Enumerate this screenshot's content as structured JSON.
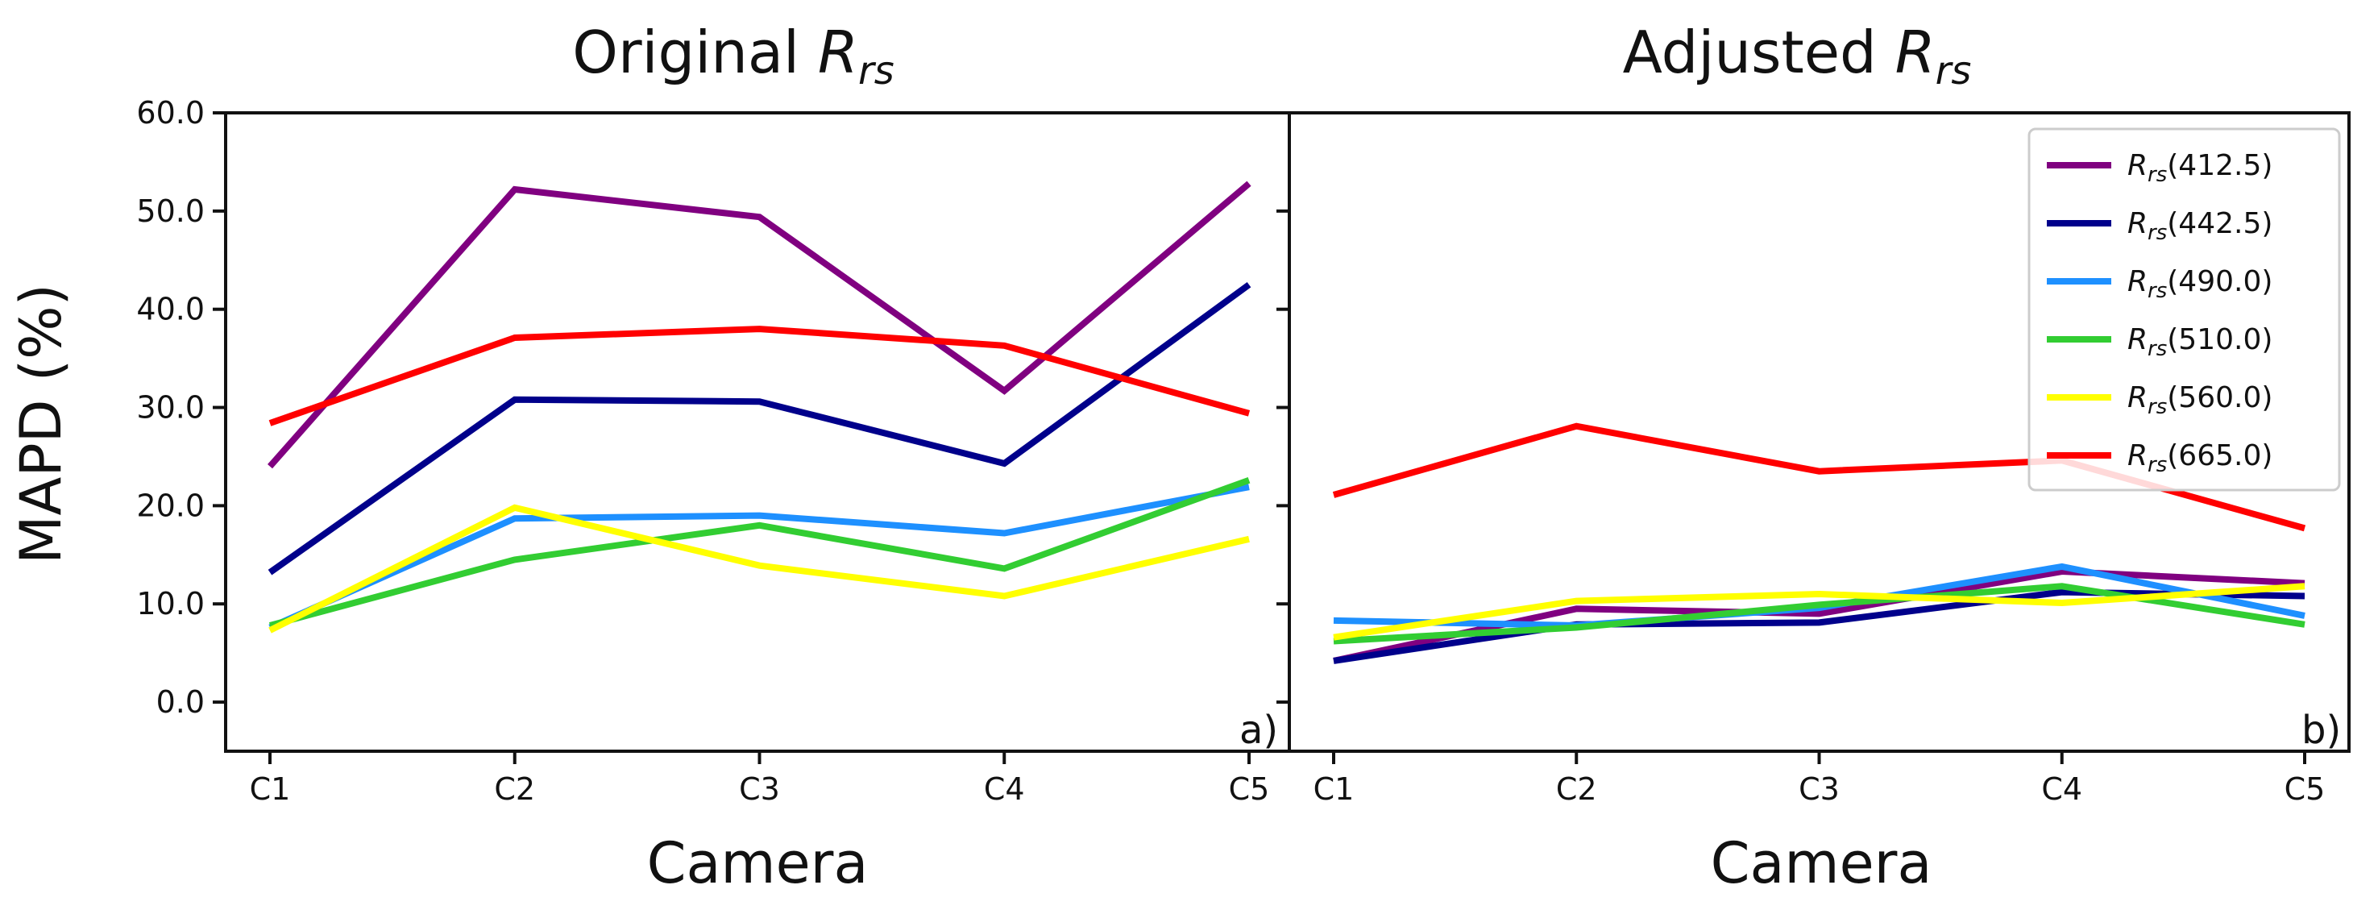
{
  "figure": {
    "ylabel": "MAPD (%)",
    "legend_location": "upper right of panel b"
  },
  "chart_data": [
    {
      "type": "line",
      "panel": "a)",
      "title": "Original",
      "title_symbol": "R",
      "title_subscript": "rs",
      "xlabel": "Camera",
      "ylabel": "MAPD (%)",
      "categories": [
        "C1",
        "C2",
        "C3",
        "C4",
        "C5"
      ],
      "ylim": [
        -5,
        60
      ],
      "yticks": [
        "0.0",
        "10.0",
        "20.0",
        "30.0",
        "40.0",
        "50.0",
        "60.0"
      ],
      "series": [
        {
          "name": "Rrs(412.5)",
          "symbol": "R",
          "subscript": "rs",
          "wavelength": "(412.5)",
          "color": "#800080",
          "values": [
            24.0,
            52.2,
            49.4,
            31.7,
            52.8
          ]
        },
        {
          "name": "Rrs(442.5)",
          "symbol": "R",
          "subscript": "rs",
          "wavelength": "(442.5)",
          "color": "#00008B",
          "values": [
            13.2,
            30.8,
            30.6,
            24.3,
            42.5
          ]
        },
        {
          "name": "Rrs(490.0)",
          "symbol": "R",
          "subscript": "rs",
          "wavelength": "(490.0)",
          "color": "#1E90FF",
          "values": [
            7.6,
            18.7,
            19.0,
            17.2,
            21.9
          ]
        },
        {
          "name": "Rrs(510.0)",
          "symbol": "R",
          "subscript": "rs",
          "wavelength": "(510.0)",
          "color": "#32CD32",
          "values": [
            7.8,
            14.5,
            18.0,
            13.6,
            22.6
          ]
        },
        {
          "name": "Rrs(560.0)",
          "symbol": "R",
          "subscript": "rs",
          "wavelength": "(560.0)",
          "color": "#FFFF00",
          "values": [
            7.3,
            19.8,
            13.9,
            10.8,
            16.6
          ]
        },
        {
          "name": "Rrs(665.0)",
          "symbol": "R",
          "subscript": "rs",
          "wavelength": "(665.0)",
          "color": "#FF0000",
          "values": [
            28.4,
            37.1,
            38.0,
            36.3,
            29.4
          ]
        }
      ]
    },
    {
      "type": "line",
      "panel": "b)",
      "title": "Adjusted",
      "title_symbol": "R",
      "title_subscript": "rs",
      "xlabel": "Camera",
      "ylabel": "",
      "categories": [
        "C1",
        "C2",
        "C3",
        "C4",
        "C5"
      ],
      "ylim": [
        -5,
        60
      ],
      "series": [
        {
          "name": "Rrs(412.5)",
          "color": "#800080",
          "values": [
            4.2,
            9.5,
            9.0,
            13.3,
            12.1
          ]
        },
        {
          "name": "Rrs(442.5)",
          "color": "#00008B",
          "values": [
            4.2,
            7.9,
            8.1,
            11.2,
            10.8
          ]
        },
        {
          "name": "Rrs(490.0)",
          "color": "#1E90FF",
          "values": [
            8.3,
            7.8,
            9.6,
            13.8,
            8.8
          ]
        },
        {
          "name": "Rrs(510.0)",
          "color": "#32CD32",
          "values": [
            6.2,
            7.6,
            9.9,
            11.8,
            7.9
          ]
        },
        {
          "name": "Rrs(560.0)",
          "color": "#FFFF00",
          "values": [
            6.6,
            10.3,
            11.0,
            10.1,
            11.8
          ]
        },
        {
          "name": "Rrs(665.0)",
          "color": "#FF0000",
          "values": [
            21.1,
            28.1,
            23.5,
            24.6,
            17.7
          ]
        }
      ]
    }
  ]
}
